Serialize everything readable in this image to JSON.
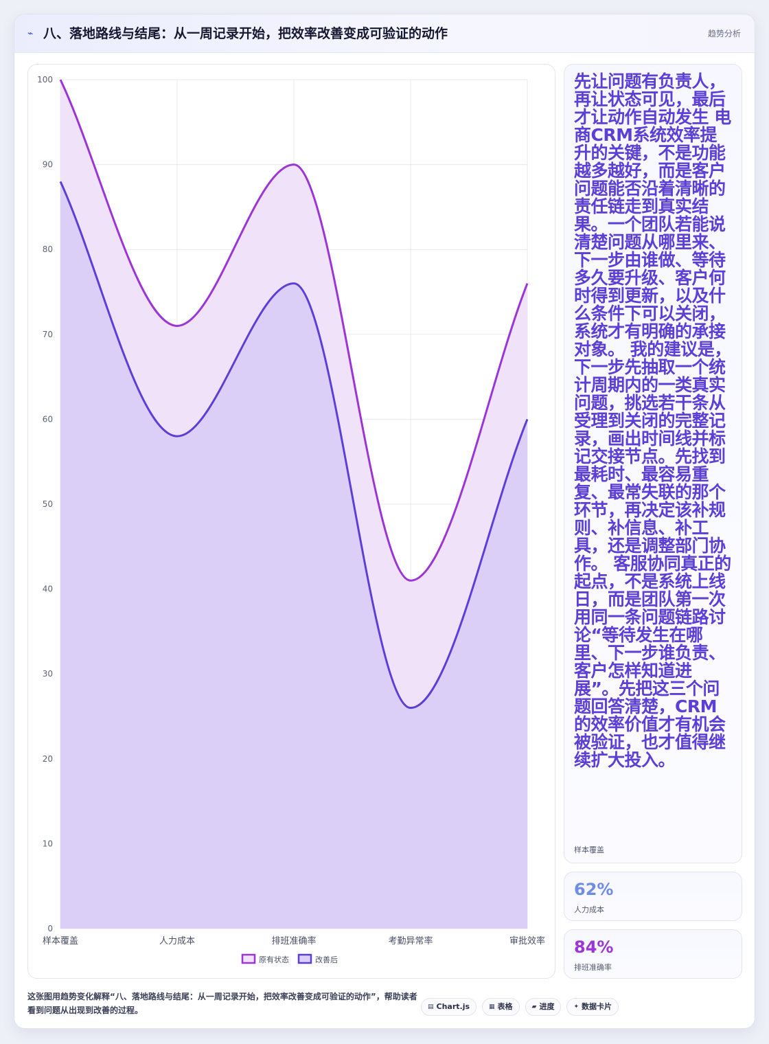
{
  "header": {
    "icon": "trend-line-icon",
    "title": "八、落地路线与结尾：从一周记录开始，把效率改善变成可验证的动作",
    "tag": "趋势分析"
  },
  "chart_data": {
    "type": "area",
    "categories": [
      "样本覆盖",
      "人力成本",
      "排班准确率",
      "考勤异常率",
      "审批效率"
    ],
    "series": [
      {
        "name": "原有状态",
        "values": [
          100,
          71,
          90,
          41,
          76
        ],
        "color": "#9b35d4",
        "fill": "#efe2f9"
      },
      {
        "name": "改善后",
        "values": [
          88,
          58,
          76,
          26,
          60
        ],
        "color": "#5b3fd6",
        "fill": "#dbcff7"
      }
    ],
    "ylim": [
      0,
      100
    ],
    "yticks": [
      0,
      10,
      20,
      30,
      40,
      50,
      60,
      70,
      80,
      90,
      100
    ],
    "grid": true,
    "legend_position": "bottom"
  },
  "side": {
    "big_text": "先让问题有负责人，再让状态可见，最后才让动作自动发生 电商CRM系统效率提升的关键，不是功能越多越好，而是客户问题能否沿着清晰的责任链走到真实结果。一个团队若能说清楚问题从哪里来、下一步由谁做、等待多久要升级、客户何时得到更新，以及什么条件下可以关闭，系统才有明确的承接对象。 我的建议是，下一步先抽取一个统计周期内的一类真实问题，挑选若干条从受理到关闭的完整记录，画出时间线并标记交接节点。先找到最耗时、最容易重复、最常失联的那个环节，再决定该补规则、补信息、补工具，还是调整部门协作。 客服协同真正的起点，不是系统上线日，而是团队第一次用同一条问题链路讨论“等待发生在哪里、下一步谁负责、客户怎样知道进展”。先把这三个问题回答清楚，CRM的效率价值才有机会被验证，也才值得继续扩大投入。",
    "big_label": "样本覆盖",
    "metric2_value": "62%",
    "metric2_label": "人力成本",
    "metric2_color": "#6f8ce6",
    "metric3_value": "84%",
    "metric3_label": "排班准确率",
    "metric3_color": "#9b35d4"
  },
  "footer": {
    "note": "这张图用趋势变化解释“八、落地路线与结尾：从一周记录开始，把效率改善变成可验证的动作”，帮助读者看到问题从出现到改善的过程。",
    "chips": [
      {
        "icon": "table-icon",
        "glyph": "▤",
        "label": "Chart.js"
      },
      {
        "icon": "grid-icon",
        "glyph": "▦",
        "label": "表格"
      },
      {
        "icon": "progress-icon",
        "glyph": "▰",
        "label": "进度"
      },
      {
        "icon": "sparkle-icon",
        "glyph": "✦",
        "label": "数据卡片"
      }
    ]
  }
}
